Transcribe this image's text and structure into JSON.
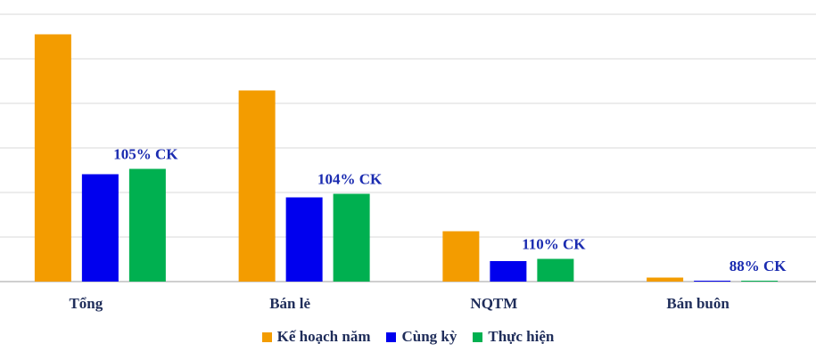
{
  "chart_data": {
    "type": "bar",
    "categories": [
      "Tổng",
      "Bán lẻ",
      "NQTM",
      "Bán buôn"
    ],
    "series": [
      {
        "name": "Kế hoạch năm",
        "values": [
          5.55,
          4.29,
          1.13,
          0.09
        ],
        "color": "#f39c00"
      },
      {
        "name": "Cùng kỳ",
        "values": [
          2.41,
          1.89,
          0.46,
          0.02
        ],
        "color": "#0000ee"
      },
      {
        "name": "Thực hiện",
        "values": [
          2.53,
          1.97,
          0.51,
          0.02
        ],
        "color": "#00b050"
      }
    ],
    "data_labels": [
      "105% CK",
      "104% CK",
      "110% CK",
      "88% CK"
    ],
    "ylim": [
      0,
      6
    ],
    "grid": true,
    "legend_position": "bottom"
  }
}
